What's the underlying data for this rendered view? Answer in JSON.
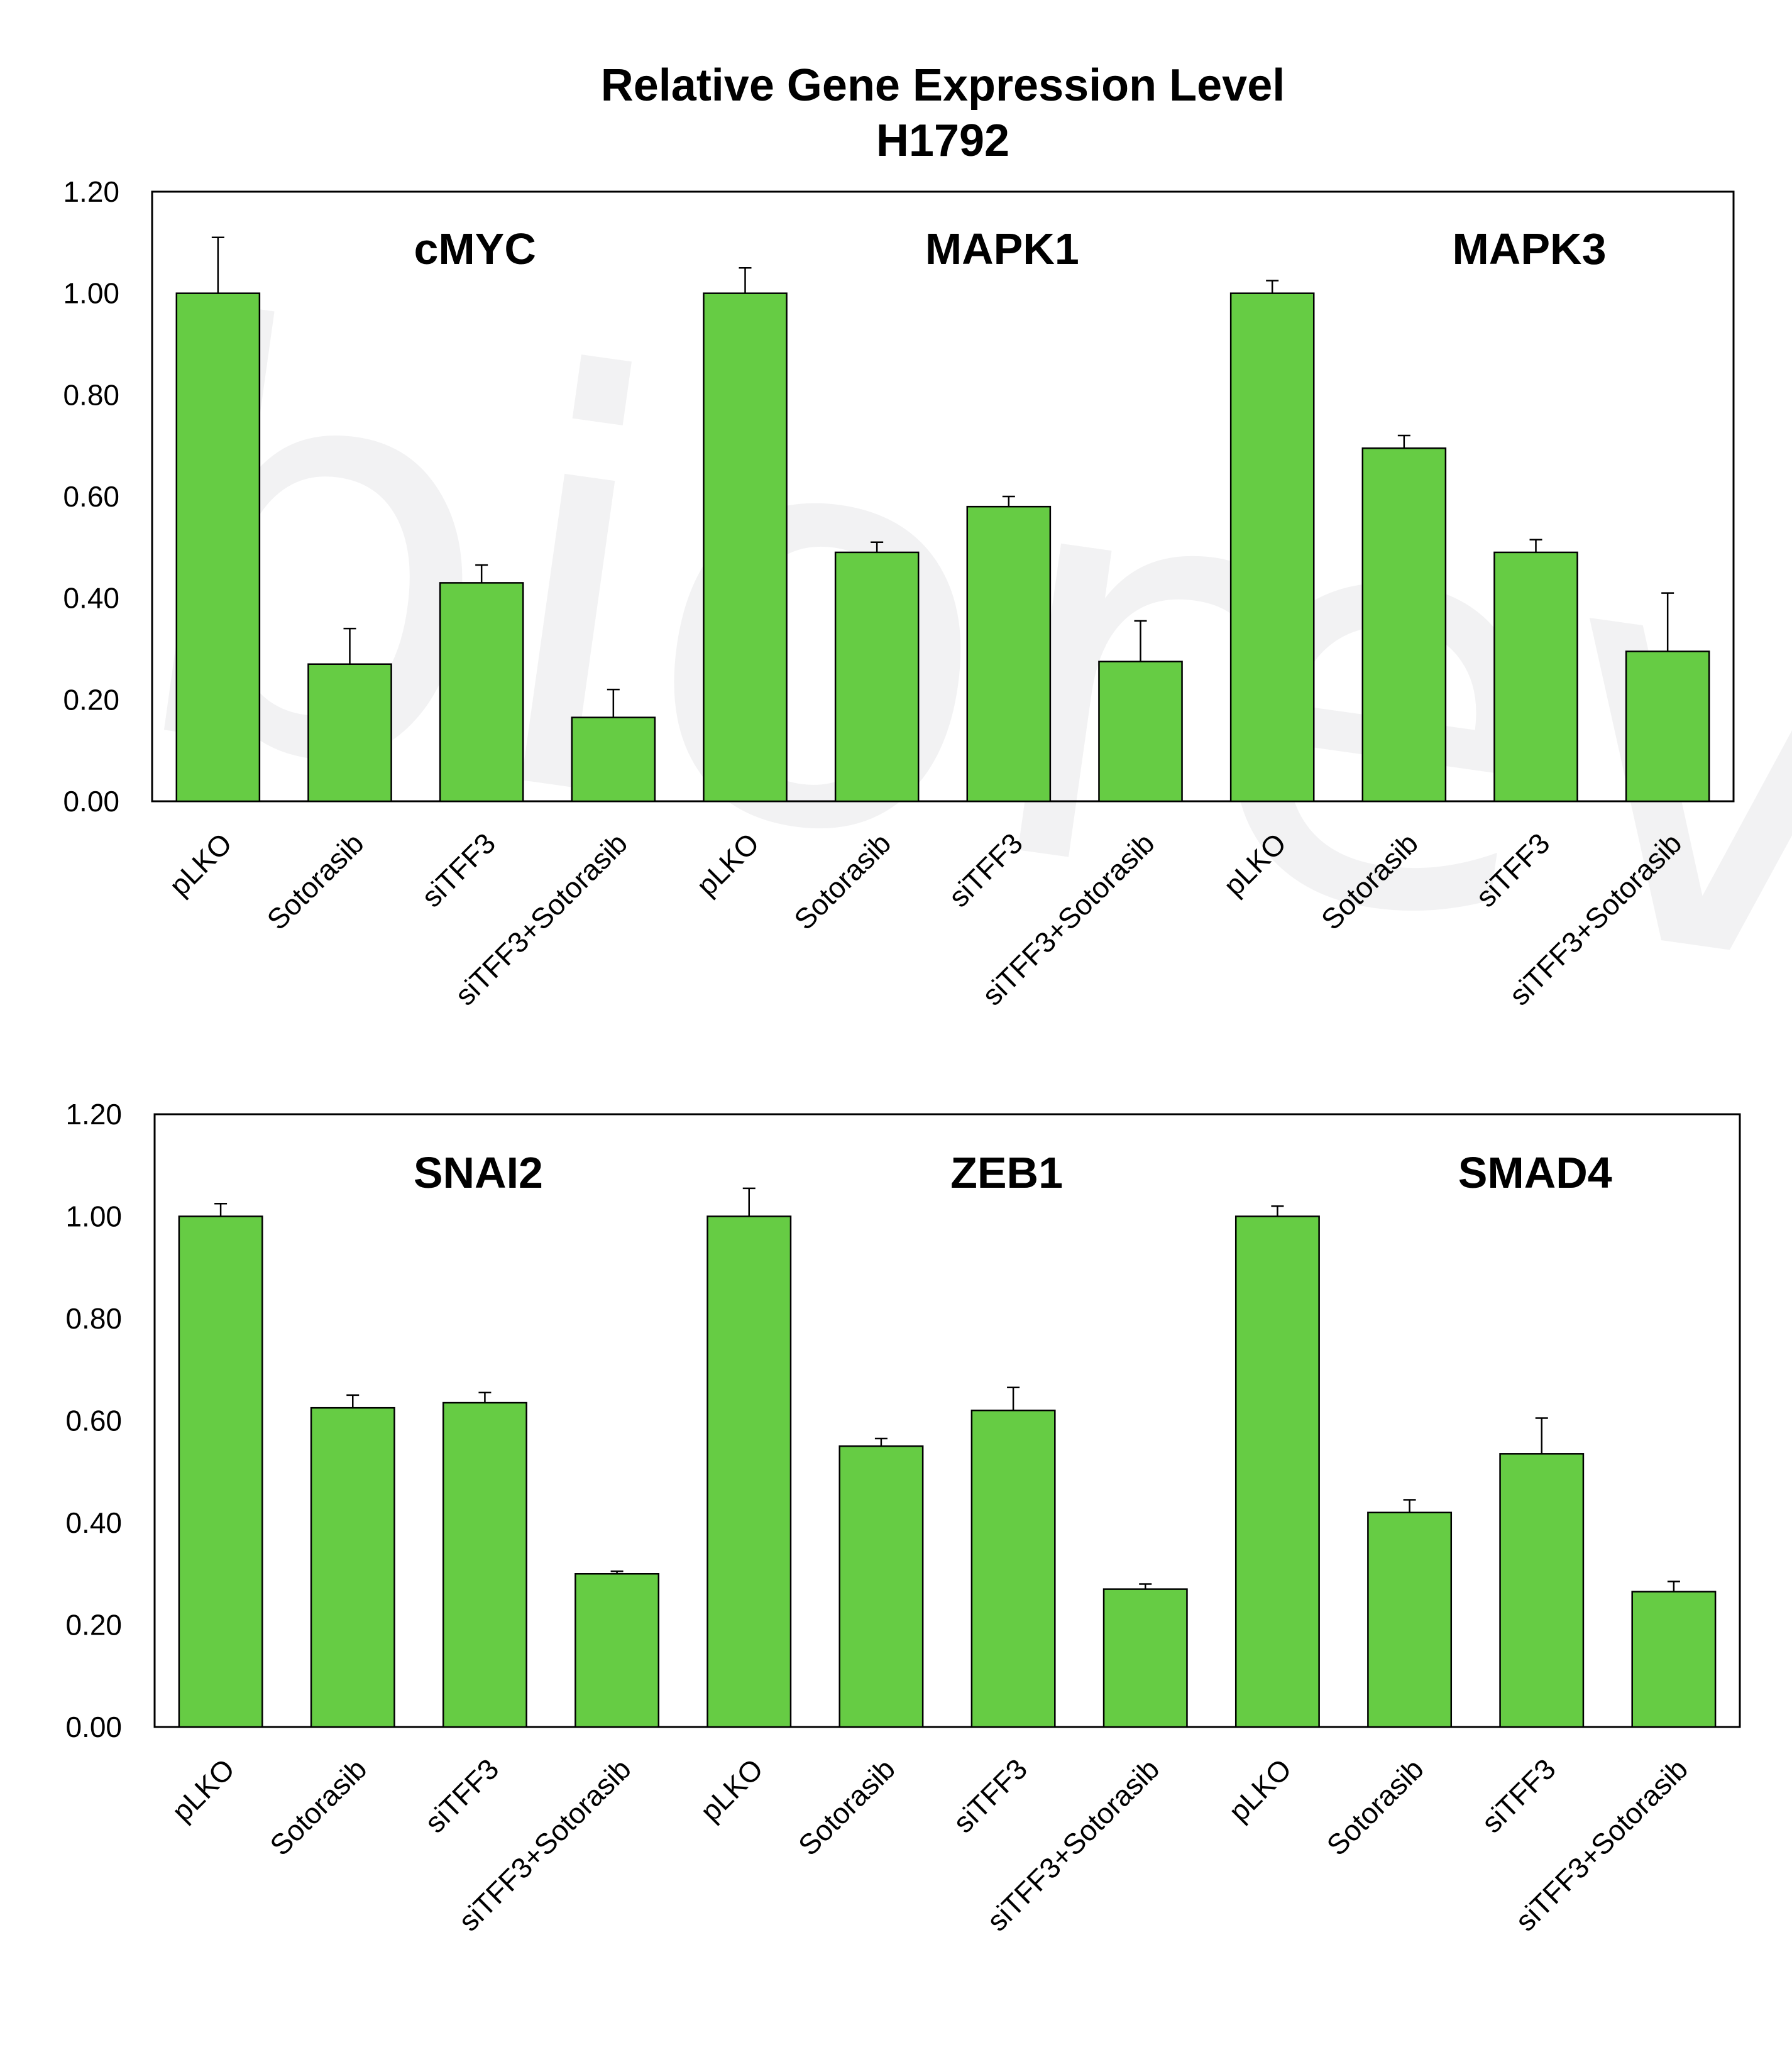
{
  "title_line1": "Relative Gene Expression Level",
  "title_line2": "H1792",
  "watermark": "biorevert",
  "bar_color": "#66cc44",
  "chart_data": [
    {
      "type": "bar",
      "ylim": [
        0,
        1.2
      ],
      "yticks": [
        "0.00",
        "0.20",
        "0.40",
        "0.60",
        "0.80",
        "1.00",
        "1.20"
      ],
      "categories": [
        "pLKO",
        "Sotorasib",
        "siTFF3",
        "siTFF3+Sotorasib",
        "pLKO",
        "Sotorasib",
        "siTFF3",
        "siTFF3+Sotorasib",
        "pLKO",
        "Sotorasib",
        "siTFF3",
        "siTFF3+Sotorasib"
      ],
      "groups": [
        "cMYC",
        "MAPK1",
        "MAPK3"
      ],
      "values": [
        1.0,
        0.27,
        0.43,
        0.165,
        1.0,
        0.49,
        0.58,
        0.275,
        1.0,
        0.695,
        0.49,
        0.295
      ],
      "errors": [
        0.11,
        0.07,
        0.035,
        0.055,
        0.05,
        0.02,
        0.02,
        0.08,
        0.025,
        0.025,
        0.025,
        0.115
      ]
    },
    {
      "type": "bar",
      "ylim": [
        0,
        1.2
      ],
      "yticks": [
        "0.00",
        "0.20",
        "0.40",
        "0.60",
        "0.80",
        "1.00",
        "1.20"
      ],
      "categories": [
        "pLKO",
        "Sotorasib",
        "siTFF3",
        "siTFF3+Sotorasib",
        "pLKO",
        "Sotorasib",
        "siTFF3",
        "siTFF3+Sotorasib",
        "pLKO",
        "Sotorasib",
        "siTFF3",
        "siTFF3+Sotorasib"
      ],
      "groups": [
        "SNAI2",
        "ZEB1",
        "SMAD4"
      ],
      "values": [
        1.0,
        0.625,
        0.635,
        0.3,
        1.0,
        0.55,
        0.62,
        0.27,
        1.0,
        0.42,
        0.535,
        0.265
      ],
      "errors": [
        0.025,
        0.025,
        0.02,
        0.005,
        0.055,
        0.015,
        0.045,
        0.01,
        0.02,
        0.025,
        0.07,
        0.02
      ]
    }
  ]
}
